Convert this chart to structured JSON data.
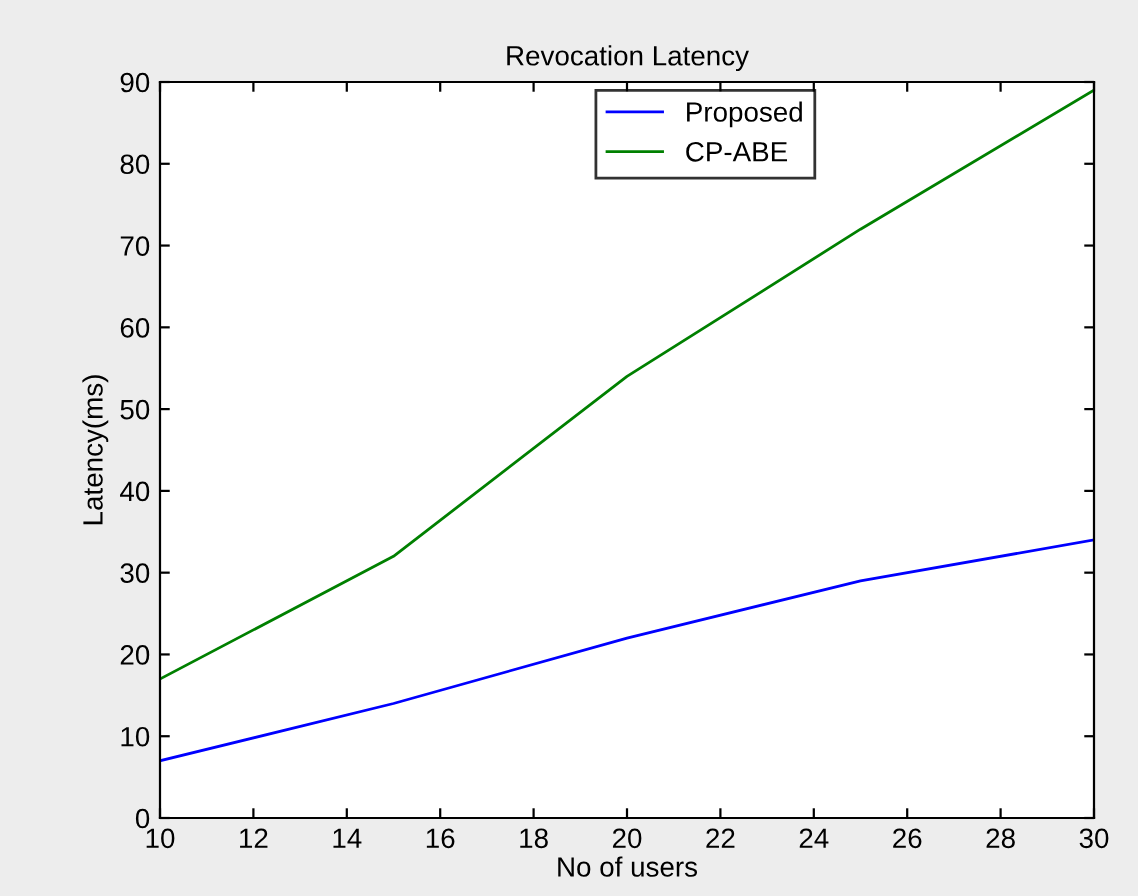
{
  "chart_data": {
    "type": "line",
    "title": "Revocation Latency",
    "xlabel": "No of users",
    "ylabel": "Latency(ms)",
    "x": [
      10,
      15,
      20,
      25,
      30
    ],
    "series": [
      {
        "name": "Proposed",
        "color": "#0000ff",
        "values": [
          7,
          14,
          22,
          29,
          34
        ]
      },
      {
        "name": "CP-ABE",
        "color": "#008000",
        "values": [
          17,
          32,
          54,
          72,
          89
        ]
      }
    ],
    "xlim": [
      10,
      30
    ],
    "xticks": [
      10,
      12,
      14,
      16,
      18,
      20,
      22,
      24,
      26,
      28,
      30
    ],
    "ylim": [
      0,
      90
    ],
    "yticks": [
      0,
      10,
      20,
      30,
      40,
      50,
      60,
      70,
      80,
      90
    ],
    "grid": false,
    "legend": "top",
    "marker": "none",
    "line_style": "solid"
  }
}
